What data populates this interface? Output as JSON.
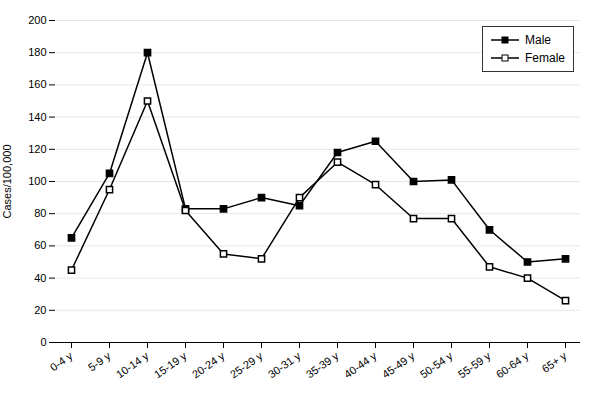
{
  "chart_data": {
    "type": "line",
    "categories": [
      "0-4 y",
      "5-9 y",
      "10-14 y",
      "15-19 y",
      "20-24 y",
      "25-29 y",
      "30-31 y",
      "35-39 y",
      "40-44 y",
      "45-49 y",
      "50-54 y",
      "55-59 y",
      "60-64 y",
      "65+ y"
    ],
    "series": [
      {
        "name": "Male",
        "color": "#000000",
        "marker": "square",
        "values": [
          65,
          105,
          180,
          83,
          83,
          90,
          85,
          118,
          125,
          100,
          101,
          70,
          50,
          52
        ]
      },
      {
        "name": "Female",
        "color": "#000000",
        "marker": "square-open",
        "values": [
          45,
          95,
          150,
          82,
          55,
          52,
          90,
          112,
          98,
          77,
          77,
          47,
          40,
          26
        ]
      }
    ],
    "ylabel": "Cases/100,000",
    "ylim": [
      0,
      200
    ],
    "yticks": [
      0,
      20,
      40,
      60,
      80,
      100,
      120,
      140,
      160,
      180,
      200
    ],
    "grid": true,
    "legend": "upper right"
  }
}
